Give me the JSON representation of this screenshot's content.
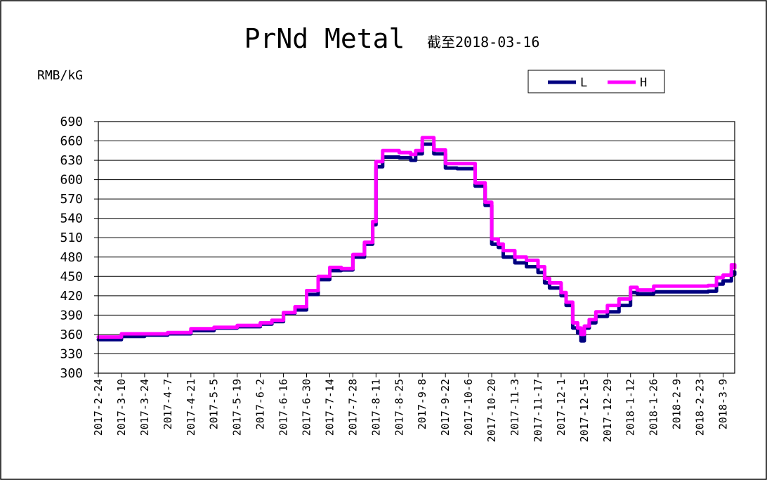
{
  "chart_data": {
    "type": "line",
    "title": "PrNd Metal",
    "subtitle": "截至2018-03-16",
    "ylabel": "RMB/kG",
    "xlabel": "",
    "ylim": [
      300,
      690
    ],
    "yticks": [
      300,
      330,
      360,
      390,
      420,
      450,
      480,
      510,
      540,
      570,
      600,
      630,
      660,
      690
    ],
    "grid": true,
    "legend": "top-right",
    "x_tick_labels": [
      "2017-2-24",
      "2017-3-10",
      "2017-3-24",
      "2017-4-7",
      "2017-4-21",
      "2017-5-5",
      "2017-5-19",
      "2017-6-2",
      "2017-6-16",
      "2017-6-30",
      "2017-7-14",
      "2017-7-28",
      "2017-8-11",
      "2017-8-25",
      "2017-9-8",
      "2017-9-22",
      "2017-10-6",
      "2017-10-20",
      "2017-11-3",
      "2017-11-17",
      "2017-12-1",
      "2017-12-15",
      "2017-12-29",
      "2018-1-12",
      "2018-1-26",
      "2018-2-9",
      "2018-2-23",
      "2018-3-9"
    ],
    "x": [
      "2017-02-24",
      "2017-03-10",
      "2017-03-24",
      "2017-04-07",
      "2017-04-21",
      "2017-05-05",
      "2017-05-19",
      "2017-06-02",
      "2017-06-09",
      "2017-06-16",
      "2017-06-23",
      "2017-06-30",
      "2017-07-07",
      "2017-07-14",
      "2017-07-21",
      "2017-07-28",
      "2017-08-04",
      "2017-08-09",
      "2017-08-11",
      "2017-08-15",
      "2017-08-25",
      "2017-09-01",
      "2017-09-04",
      "2017-09-08",
      "2017-09-12",
      "2017-09-15",
      "2017-09-22",
      "2017-09-29",
      "2017-10-06",
      "2017-10-10",
      "2017-10-16",
      "2017-10-20",
      "2017-10-24",
      "2017-10-27",
      "2017-11-03",
      "2017-11-10",
      "2017-11-17",
      "2017-11-21",
      "2017-11-24",
      "2017-12-01",
      "2017-12-04",
      "2017-12-08",
      "2017-12-11",
      "2017-12-13",
      "2017-12-15",
      "2017-12-18",
      "2017-12-22",
      "2017-12-29",
      "2018-01-05",
      "2018-01-12",
      "2018-01-16",
      "2018-01-26",
      "2018-02-09",
      "2018-02-23",
      "2018-02-28",
      "2018-03-05",
      "2018-03-09",
      "2018-03-14",
      "2018-03-16"
    ],
    "series": [
      {
        "name": "L",
        "color": "#000080",
        "values": [
          352,
          357,
          359,
          361,
          366,
          370,
          372,
          376,
          380,
          393,
          398,
          422,
          445,
          459,
          460,
          480,
          500,
          530,
          620,
          635,
          634,
          630,
          640,
          655,
          655,
          640,
          618,
          617,
          617,
          590,
          560,
          500,
          495,
          480,
          471,
          465,
          456,
          440,
          432,
          420,
          405,
          370,
          362,
          350,
          370,
          378,
          388,
          395,
          405,
          425,
          423,
          426,
          426,
          426,
          427,
          438,
          443,
          457,
          453
        ]
      },
      {
        "name": "H",
        "color": "#FF00FF",
        "values": [
          356,
          361,
          361,
          363,
          369,
          371,
          374,
          378,
          382,
          394,
          403,
          428,
          450,
          464,
          462,
          484,
          503,
          535,
          628,
          645,
          642,
          639,
          645,
          665,
          665,
          646,
          625,
          625,
          625,
          595,
          565,
          508,
          500,
          490,
          480,
          475,
          465,
          447,
          440,
          425,
          410,
          378,
          370,
          360,
          373,
          383,
          395,
          405,
          415,
          433,
          429,
          435,
          435,
          435,
          436,
          448,
          452,
          468,
          463
        ]
      }
    ]
  }
}
